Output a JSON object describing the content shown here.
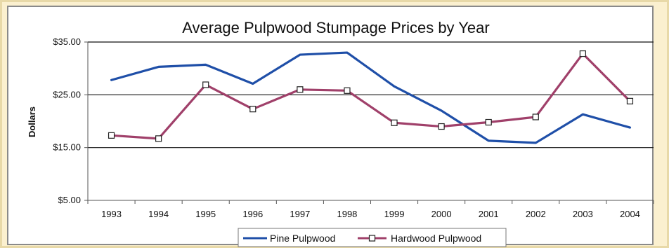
{
  "chart_data": {
    "type": "line",
    "title": "Average Pulpwood Stumpage Prices by Year",
    "xlabel": "",
    "ylabel": "Dollars",
    "categories": [
      "1993",
      "1994",
      "1995",
      "1996",
      "1997",
      "1998",
      "1999",
      "2000",
      "2001",
      "2002",
      "2003",
      "2004"
    ],
    "ylim": [
      5,
      35
    ],
    "yticks": [
      5,
      15,
      25,
      35
    ],
    "ytick_labels": [
      "$5.00",
      "$15.00",
      "$25.00",
      "$35.00"
    ],
    "gridlines": [
      15,
      25,
      35
    ],
    "legend_position": "bottom",
    "series": [
      {
        "name": "Pine Pulpwood",
        "color": "#1f4fa8",
        "marker": "none",
        "values": [
          27.8,
          30.3,
          30.7,
          27.1,
          32.6,
          33.0,
          26.6,
          22.0,
          16.3,
          15.9,
          21.3,
          18.8
        ]
      },
      {
        "name": "Hardwood Pulpwood",
        "color": "#a0406a",
        "marker": "square",
        "values": [
          17.3,
          16.7,
          26.9,
          22.3,
          26.0,
          25.8,
          19.7,
          19.0,
          19.8,
          20.8,
          32.8,
          23.8
        ]
      }
    ]
  }
}
